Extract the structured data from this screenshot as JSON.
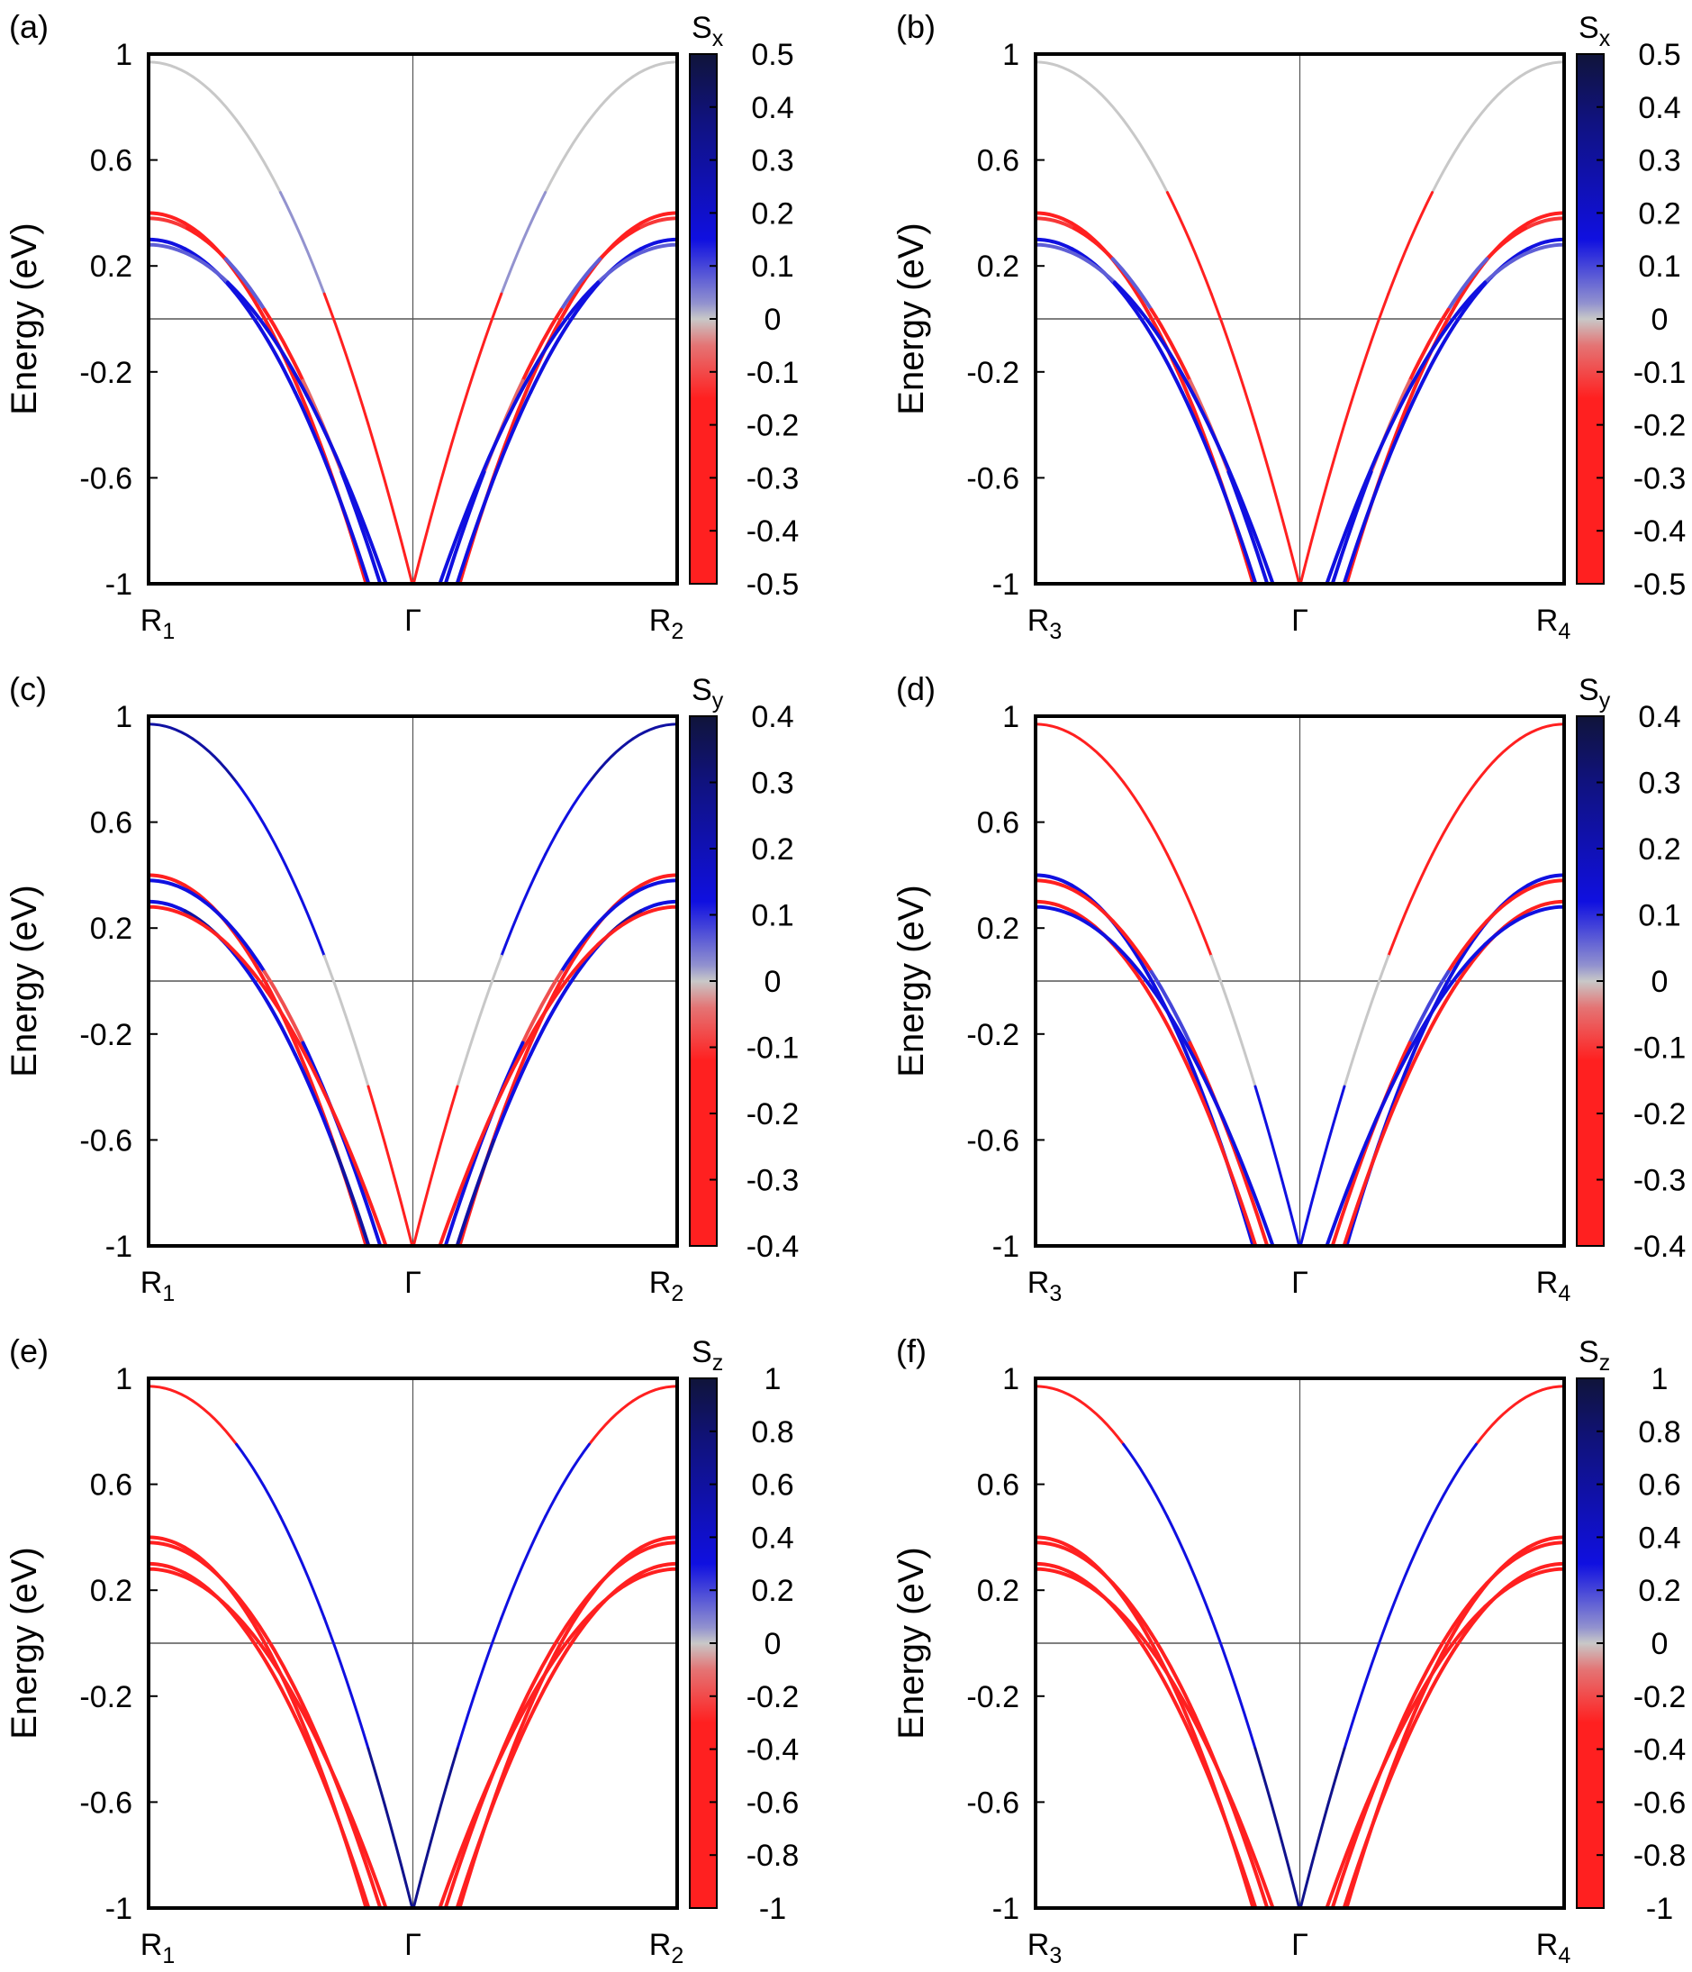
{
  "figure": {
    "palette": {
      "negative": "#ff2020",
      "zero": "#c8c8c8",
      "positive": "#1010e0",
      "max": "#10143a"
    }
  },
  "chart_data": [
    {
      "panel": "(a)",
      "type": "line",
      "ylabel": "Energy (eV)",
      "ylim": [
        -1,
        1
      ],
      "yticks": [
        "1",
        "0.6",
        "0.2",
        "-0.2",
        "-0.6",
        "-1"
      ],
      "kpoints": [
        {
          "letter": "R",
          "sub": "1"
        },
        {
          "letter": "Γ",
          "sub": ""
        },
        {
          "letter": "R",
          "sub": "2"
        }
      ],
      "colorbar": {
        "title": "S",
        "sub": "x",
        "range": [
          -0.5,
          0.5
        ],
        "ticks": [
          "0.5",
          "0.4",
          "0.3",
          "0.2",
          "0.1",
          "0",
          "-0.1",
          "-0.2",
          "-0.3",
          "-0.4",
          "-0.5"
        ]
      },
      "bands": [
        {
          "top_energy": 0.97,
          "kf": 0.35,
          "k_bottom": 0.57,
          "spin": [
            0,
            0,
            0,
            0.05,
            -0.3,
            -0.35
          ]
        },
        {
          "top_energy": 0.4,
          "kf": 0.22,
          "k_bottom": 0.62,
          "spin": [
            -0.3,
            -0.25,
            -0.3,
            -0.2,
            -0.3,
            -0.3
          ]
        },
        {
          "top_energy": 0.38,
          "kf": 0.23,
          "k_bottom": 0.6,
          "spin": [
            -0.15,
            -0.2,
            0.1,
            -0.2,
            -0.1,
            0.3
          ]
        },
        {
          "top_energy": 0.3,
          "kf": 0.2,
          "k_bottom": 0.56,
          "spin": [
            0.3,
            0.35,
            0.3,
            0.25,
            0.3,
            0.35
          ]
        },
        {
          "top_energy": 0.28,
          "kf": 0.21,
          "k_bottom": 0.58,
          "spin": [
            0.1,
            0.1,
            0.25,
            0.2,
            0.3,
            0.3
          ]
        }
      ]
    },
    {
      "panel": "(b)",
      "type": "line",
      "ylabel": "Energy (eV)",
      "ylim": [
        -1,
        1
      ],
      "yticks": [
        "1",
        "0.6",
        "0.2",
        "-0.2",
        "-0.6",
        "-1"
      ],
      "kpoints": [
        {
          "letter": "R",
          "sub": "3"
        },
        {
          "letter": "Γ",
          "sub": ""
        },
        {
          "letter": "R",
          "sub": "4"
        }
      ],
      "colorbar": {
        "title": "S",
        "sub": "x",
        "range": [
          -0.5,
          0.5
        ],
        "ticks": [
          "0.5",
          "0.4",
          "0.3",
          "0.2",
          "0.1",
          "0",
          "-0.1",
          "-0.2",
          "-0.3",
          "-0.4",
          "-0.5"
        ]
      },
      "bands": [
        {
          "top_energy": 0.97,
          "kf": 0.35,
          "k_bottom": 0.62,
          "spin": [
            0,
            0,
            0,
            -0.2,
            -0.3,
            -0.35
          ]
        },
        {
          "top_energy": 0.4,
          "kf": 0.22,
          "k_bottom": 0.64,
          "spin": [
            -0.3,
            -0.25,
            -0.3,
            -0.2,
            -0.3,
            -0.3
          ]
        },
        {
          "top_energy": 0.38,
          "kf": 0.23,
          "k_bottom": 0.61,
          "spin": [
            -0.15,
            -0.2,
            0.1,
            -0.2,
            -0.1,
            0.3
          ]
        },
        {
          "top_energy": 0.3,
          "kf": 0.2,
          "k_bottom": 0.57,
          "spin": [
            0.3,
            0.35,
            0.3,
            0.25,
            0.3,
            0.35
          ]
        },
        {
          "top_energy": 0.28,
          "kf": 0.21,
          "k_bottom": 0.59,
          "spin": [
            0.1,
            0.1,
            0.25,
            0.2,
            0.3,
            0.3
          ]
        }
      ]
    },
    {
      "panel": "(c)",
      "type": "line",
      "ylabel": "Energy (eV)",
      "ylim": [
        -1,
        1
      ],
      "yticks": [
        "1",
        "0.6",
        "0.2",
        "-0.2",
        "-0.6",
        "-1"
      ],
      "kpoints": [
        {
          "letter": "R",
          "sub": "1"
        },
        {
          "letter": "Γ",
          "sub": ""
        },
        {
          "letter": "R",
          "sub": "2"
        }
      ],
      "colorbar": {
        "title": "S",
        "sub": "y",
        "range": [
          -0.4,
          0.4
        ],
        "ticks": [
          "0.4",
          "0.3",
          "0.2",
          "0.1",
          "0",
          "-0.1",
          "-0.2",
          "-0.3",
          "-0.4"
        ]
      },
      "bands": [
        {
          "top_energy": 0.97,
          "kf": 0.35,
          "k_bottom": 0.58,
          "spin": [
            0.35,
            0.35,
            0.3,
            0.3,
            0,
            -0.3
          ]
        },
        {
          "top_energy": 0.4,
          "kf": 0.22,
          "k_bottom": 0.62,
          "spin": [
            -0.3,
            -0.3,
            -0.2,
            -0.3,
            -0.3,
            -0.3
          ]
        },
        {
          "top_energy": 0.38,
          "kf": 0.23,
          "k_bottom": 0.6,
          "spin": [
            0.2,
            0.3,
            0.2,
            -0.1,
            0.2,
            0.3
          ]
        },
        {
          "top_energy": 0.3,
          "kf": 0.2,
          "k_bottom": 0.56,
          "spin": [
            0.3,
            0.35,
            0.3,
            0.3,
            0.3,
            0.35
          ]
        },
        {
          "top_energy": 0.28,
          "kf": 0.21,
          "k_bottom": 0.58,
          "spin": [
            -0.2,
            -0.2,
            -0.2,
            -0.3,
            -0.2,
            -0.3
          ]
        }
      ]
    },
    {
      "panel": "(d)",
      "type": "line",
      "ylabel": "Energy (eV)",
      "ylim": [
        -1,
        1
      ],
      "yticks": [
        "1",
        "0.6",
        "0.2",
        "-0.2",
        "-0.6",
        "-1"
      ],
      "kpoints": [
        {
          "letter": "R",
          "sub": "3"
        },
        {
          "letter": "Γ",
          "sub": ""
        },
        {
          "letter": "R",
          "sub": "4"
        }
      ],
      "colorbar": {
        "title": "S",
        "sub": "y",
        "range": [
          -0.4,
          0.4
        ],
        "ticks": [
          "0.4",
          "0.3",
          "0.2",
          "0.1",
          "0",
          "-0.1",
          "-0.2",
          "-0.3",
          "-0.4"
        ]
      },
      "bands": [
        {
          "top_energy": 0.97,
          "kf": 0.35,
          "k_bottom": 0.58,
          "spin": [
            -0.3,
            -0.3,
            -0.3,
            -0.3,
            0,
            0.3
          ]
        },
        {
          "top_energy": 0.4,
          "kf": 0.22,
          "k_bottom": 0.64,
          "spin": [
            0.3,
            0.3,
            0.2,
            0.3,
            0.3,
            0.3
          ]
        },
        {
          "top_energy": 0.38,
          "kf": 0.23,
          "k_bottom": 0.61,
          "spin": [
            -0.2,
            -0.3,
            -0.2,
            0.1,
            -0.2,
            -0.3
          ]
        },
        {
          "top_energy": 0.3,
          "kf": 0.2,
          "k_bottom": 0.57,
          "spin": [
            -0.3,
            -0.3,
            -0.3,
            -0.3,
            -0.3,
            -0.3
          ]
        },
        {
          "top_energy": 0.28,
          "kf": 0.21,
          "k_bottom": 0.59,
          "spin": [
            0.2,
            0.2,
            0.2,
            0.3,
            0.2,
            0.3
          ]
        }
      ]
    },
    {
      "panel": "(e)",
      "type": "line",
      "ylabel": "Energy (eV)",
      "ylim": [
        -1,
        1
      ],
      "yticks": [
        "1",
        "0.6",
        "0.2",
        "-0.2",
        "-0.6",
        "-1"
      ],
      "kpoints": [
        {
          "letter": "R",
          "sub": "1"
        },
        {
          "letter": "Γ",
          "sub": ""
        },
        {
          "letter": "R",
          "sub": "2"
        }
      ],
      "colorbar": {
        "title": "S",
        "sub": "z",
        "range": [
          -1,
          1
        ],
        "ticks": [
          "1",
          "0.8",
          "0.6",
          "0.4",
          "0.2",
          "0",
          "-0.2",
          "-0.4",
          "-0.6",
          "-0.8",
          "-1"
        ]
      },
      "bands": [
        {
          "top_energy": 0.97,
          "kf": 0.35,
          "k_bottom": 0.6,
          "spin": [
            -0.8,
            -0.8,
            0.8,
            0.8,
            0.8,
            0.9
          ]
        },
        {
          "top_energy": 0.4,
          "kf": 0.22,
          "k_bottom": 0.62,
          "spin": [
            -0.9,
            -0.9,
            -0.9,
            -0.9,
            -0.9,
            -0.9
          ]
        },
        {
          "top_energy": 0.38,
          "kf": 0.23,
          "k_bottom": 0.6,
          "spin": [
            -0.9,
            -0.9,
            -0.9,
            -0.9,
            -0.9,
            -0.9
          ]
        },
        {
          "top_energy": 0.3,
          "kf": 0.2,
          "k_bottom": 0.56,
          "spin": [
            -0.9,
            -0.9,
            -0.9,
            -0.9,
            -0.9,
            -0.9
          ]
        },
        {
          "top_energy": 0.28,
          "kf": 0.21,
          "k_bottom": 0.58,
          "spin": [
            -0.9,
            -0.9,
            -0.9,
            -0.9,
            -0.9,
            -0.9
          ]
        }
      ]
    },
    {
      "panel": "(f)",
      "type": "line",
      "ylabel": "Energy (eV)",
      "ylim": [
        -1,
        1
      ],
      "yticks": [
        "1",
        "0.6",
        "0.2",
        "-0.2",
        "-0.6",
        "-1"
      ],
      "kpoints": [
        {
          "letter": "R",
          "sub": "3"
        },
        {
          "letter": "Γ",
          "sub": ""
        },
        {
          "letter": "R",
          "sub": "4"
        }
      ],
      "colorbar": {
        "title": "S",
        "sub": "z",
        "range": [
          -1,
          1
        ],
        "ticks": [
          "1",
          "0.8",
          "0.6",
          "0.4",
          "0.2",
          "0",
          "-0.2",
          "-0.4",
          "-0.6",
          "-0.8",
          "-1"
        ]
      },
      "bands": [
        {
          "top_energy": 0.97,
          "kf": 0.35,
          "k_bottom": 0.6,
          "spin": [
            -0.8,
            -0.8,
            0.8,
            0.8,
            0.8,
            0.9
          ]
        },
        {
          "top_energy": 0.4,
          "kf": 0.22,
          "k_bottom": 0.62,
          "spin": [
            -0.9,
            -0.9,
            -0.9,
            -0.9,
            -0.9,
            -0.9
          ]
        },
        {
          "top_energy": 0.38,
          "kf": 0.23,
          "k_bottom": 0.6,
          "spin": [
            -0.9,
            -0.9,
            -0.9,
            -0.9,
            -0.9,
            -0.9
          ]
        },
        {
          "top_energy": 0.3,
          "kf": 0.2,
          "k_bottom": 0.56,
          "spin": [
            -0.9,
            -0.9,
            -0.9,
            -0.9,
            -0.9,
            -0.9
          ]
        },
        {
          "top_energy": 0.28,
          "kf": 0.21,
          "k_bottom": 0.58,
          "spin": [
            -0.9,
            -0.9,
            -0.9,
            -0.9,
            -0.9,
            -0.9
          ]
        }
      ]
    }
  ]
}
